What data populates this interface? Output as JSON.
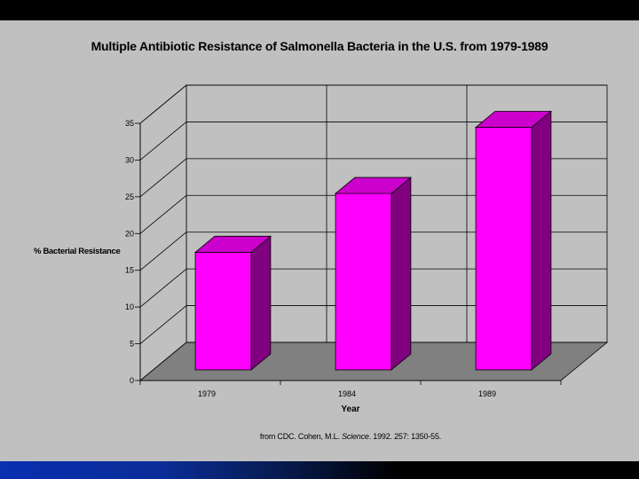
{
  "chart_data": {
    "type": "bar",
    "title": "Multiple Antibiotic Resistance of Salmonella Bacteria in the U.S. from 1979-1989",
    "xlabel": "Year",
    "ylabel": "% Bacterial Resistance",
    "categories": [
      "1979",
      "1984",
      "1989"
    ],
    "values": [
      16,
      24,
      33
    ],
    "ylim": [
      0,
      35
    ],
    "yticks": [
      0,
      5,
      10,
      15,
      20,
      25,
      30,
      35
    ],
    "grid": true,
    "three_d": true,
    "colors": {
      "bar_front": "#ff00ff",
      "bar_top": "#cc00cc",
      "bar_side": "#800080",
      "back_wall": "#c0c0c0",
      "floor": "#808080",
      "gridline": "#000000"
    }
  },
  "source": {
    "prefix": "from CDC. Cohen, M.L. ",
    "journal": "Science",
    "suffix": ". 1992. 257: 1350-55."
  }
}
